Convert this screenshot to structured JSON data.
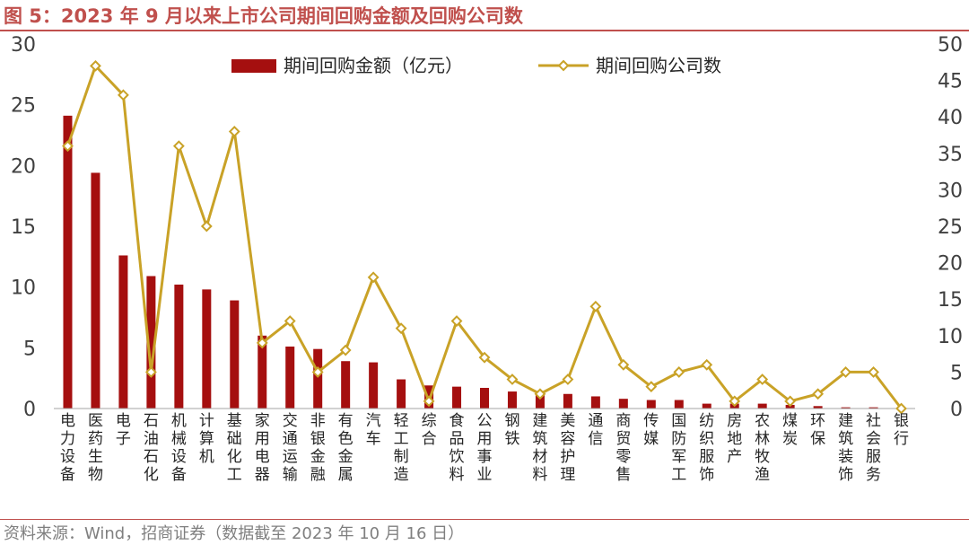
{
  "figure": {
    "title": "图 5：2023 年 9 月以来上市公司期间回购金额及回购公司数",
    "source": "资料来源：Wind，招商证券（数据截至 2023 年 10 月 16 日）"
  },
  "colors": {
    "accent": "#c0504d",
    "bar": "#a50f0f",
    "line": "#c9a227",
    "marker_fill": "#ffffff"
  },
  "chart_data": {
    "type": "bar",
    "categories": [
      "电力设备",
      "医药生物",
      "电子",
      "石油石化",
      "机械设备",
      "计算机",
      "基础化工",
      "家用电器",
      "交通运输",
      "非银金融",
      "有色金属",
      "汽车",
      "轻工制造",
      "综合",
      "食品饮料",
      "公用事业",
      "钢铁",
      "建筑材料",
      "美容护理",
      "通信",
      "商贸零售",
      "传媒",
      "国防军工",
      "纺织服饰",
      "房地产",
      "农林牧渔",
      "煤炭",
      "环保",
      "建筑装饰",
      "社会服务",
      "银行"
    ],
    "series": [
      {
        "name": "期间回购金额（亿元）",
        "type": "bar",
        "axis": "left",
        "values": [
          24.1,
          19.4,
          12.6,
          10.9,
          10.2,
          9.8,
          8.9,
          6.0,
          5.1,
          4.9,
          3.9,
          3.8,
          2.4,
          1.9,
          1.8,
          1.7,
          1.4,
          1.2,
          1.2,
          1.0,
          0.8,
          0.7,
          0.7,
          0.4,
          0.4,
          0.4,
          0.3,
          0.2,
          0.1,
          0.1,
          0.0
        ]
      },
      {
        "name": "期间回购公司数",
        "type": "line",
        "axis": "right",
        "values": [
          36,
          47,
          43,
          5,
          36,
          25,
          38,
          9,
          12,
          5,
          8,
          18,
          11,
          1,
          12,
          7,
          4,
          2,
          4,
          14,
          6,
          3,
          5,
          6,
          1,
          4,
          1,
          2,
          5,
          5,
          0
        ]
      }
    ],
    "y_left": {
      "min": 0,
      "max": 30,
      "ticks": [
        0,
        5,
        10,
        15,
        20,
        25,
        30
      ]
    },
    "y_right": {
      "min": 0,
      "max": 50,
      "ticks": [
        0,
        5,
        10,
        15,
        20,
        25,
        30,
        35,
        40,
        45,
        50
      ]
    },
    "legend_position": "top"
  }
}
